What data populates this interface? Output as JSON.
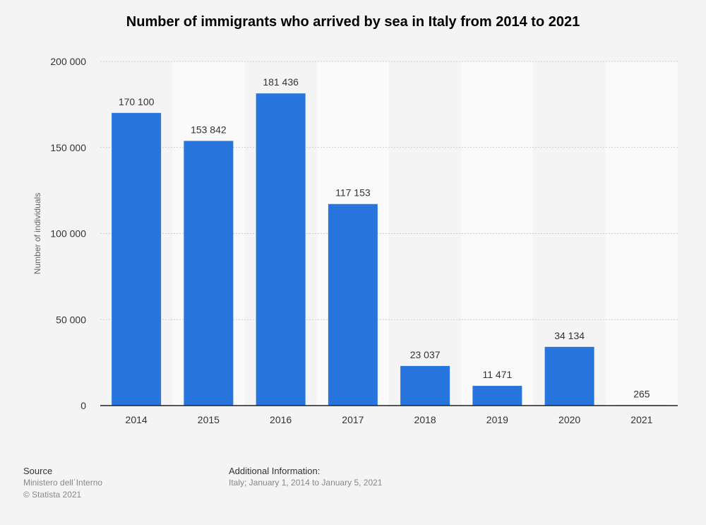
{
  "title": "Number of immigrants who arrived by sea in Italy from 2014 to 2021",
  "chart_data": {
    "type": "bar",
    "title": "Number of immigrants who arrived by sea in Italy from 2014 to 2021",
    "xlabel": "",
    "ylabel": "Number of individuals",
    "categories": [
      "2014",
      "2015",
      "2016",
      "2017",
      "2018",
      "2019",
      "2020",
      "2021"
    ],
    "values": [
      170100,
      153842,
      181436,
      117153,
      23037,
      11471,
      34134,
      265
    ],
    "value_labels": [
      "170 100",
      "153 842",
      "181 436",
      "117 153",
      "23 037",
      "11 471",
      "34 134",
      "265"
    ],
    "ylim": [
      0,
      200000
    ],
    "yticks": [
      0,
      50000,
      100000,
      150000,
      200000
    ],
    "ytick_labels": [
      "0",
      "50 000",
      "100 000",
      "150 000",
      "200 000"
    ],
    "grid": true,
    "legend": "none",
    "bar_color": "#2876dd"
  },
  "footer": {
    "source_heading": "Source",
    "source_lines": [
      "Ministero dell´Interno",
      "© Statista 2021"
    ],
    "info_heading": "Additional Information:",
    "info_text": "Italy; January 1, 2014 to January 5, 2021"
  }
}
